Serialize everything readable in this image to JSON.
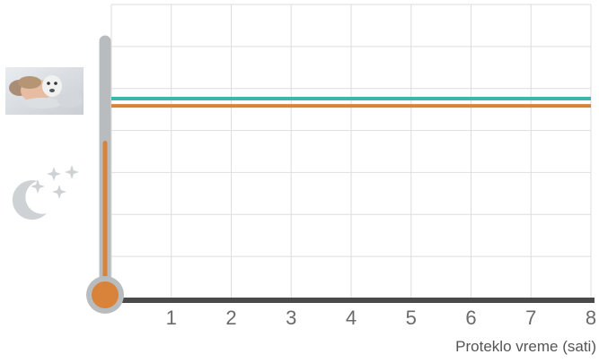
{
  "chart_data": {
    "type": "line",
    "xlabel": "Proteklo vreme (sati)",
    "ylabel": "",
    "x_ticks": [
      "1",
      "2",
      "3",
      "4",
      "5",
      "6",
      "7",
      "8"
    ],
    "xlim": [
      0,
      8
    ],
    "ylim": [
      0,
      10
    ],
    "grid": true,
    "series": [
      {
        "color": "#3bb8ae",
        "x": [
          0,
          8
        ],
        "y": [
          6.8,
          6.8
        ]
      },
      {
        "color": "#d9823a",
        "x": [
          0,
          8
        ],
        "y": [
          6.55,
          6.55
        ]
      }
    ],
    "thermometer": {
      "level": 0.6,
      "fill_color": "#d9823a",
      "track_color": "#b9bcbf"
    },
    "icons": [
      "sleeping-child-photo",
      "moon-stars-icon"
    ]
  }
}
